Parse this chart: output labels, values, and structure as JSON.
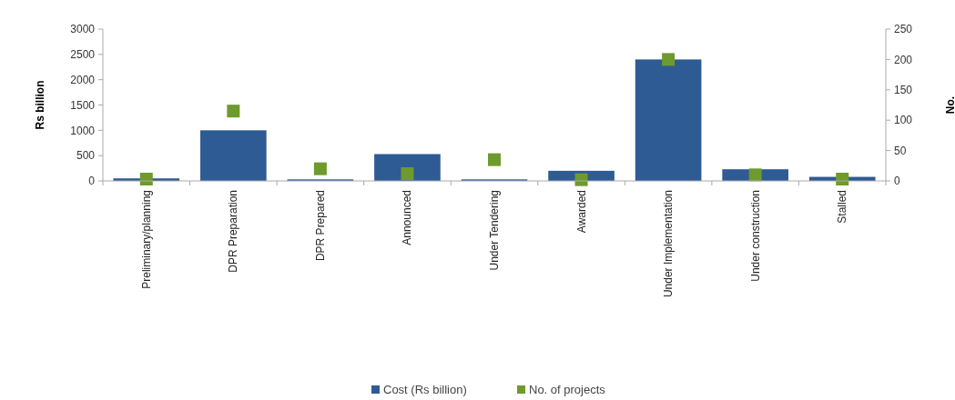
{
  "chart_data": {
    "type": "bar",
    "categories": [
      "Preliminary/planning",
      "DPR Preparation",
      "DPR Prepared",
      "Announced",
      "Under Tendering",
      "Awarded",
      "Under Implementation",
      "Under construction",
      "Stalled"
    ],
    "series": [
      {
        "name": "Cost (Rs billion)",
        "color": "#2e5b93",
        "values": [
          50,
          1000,
          30,
          530,
          30,
          200,
          2400,
          230,
          80
        ]
      },
      {
        "name": "No. of projects",
        "type": "scatter",
        "axis": "y2",
        "color": "#6e9a2e",
        "values": [
          3,
          115,
          20,
          12,
          35,
          2,
          200,
          10,
          3
        ]
      }
    ],
    "ylabel": "Rs billion",
    "y2label": "No.",
    "ylim": [
      0,
      3000
    ],
    "yticks": [
      0,
      500,
      1000,
      1500,
      2000,
      2500,
      3000
    ],
    "y2lim": [
      0,
      250
    ],
    "y2ticks": [
      0,
      50,
      100,
      150,
      200,
      250
    ],
    "marker": "square",
    "legend": "bottom",
    "grid": false
  }
}
